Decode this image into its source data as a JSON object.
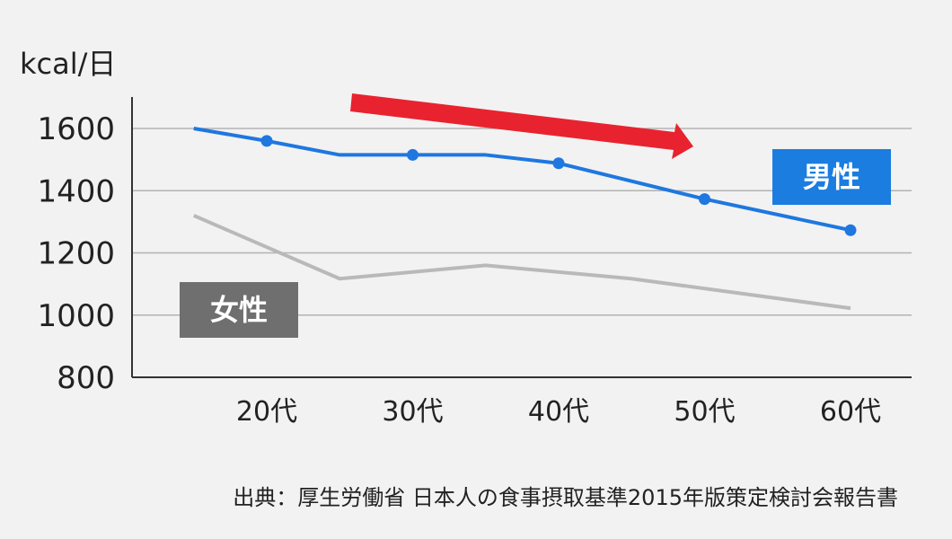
{
  "chart_data": {
    "type": "line",
    "y_unit_label": "kcal/日",
    "categories": [
      "20代",
      "30代",
      "40代",
      "50代",
      "60代"
    ],
    "y_ticks": [
      800,
      1000,
      1200,
      1400,
      1600
    ],
    "ylim": [
      800,
      1600
    ],
    "grid": true,
    "series": [
      {
        "name": "男性",
        "color": "#1f77e0",
        "marker": true,
        "points": [
          {
            "x": 15,
            "y": 1600
          },
          {
            "x": 20,
            "y": 1560
          },
          {
            "x": 25,
            "y": 1515
          },
          {
            "x": 30,
            "y": 1515
          },
          {
            "x": 35,
            "y": 1515
          },
          {
            "x": 40,
            "y": 1488
          },
          {
            "x": 50,
            "y": 1373
          },
          {
            "x": 60,
            "y": 1273
          }
        ],
        "marker_points": [
          {
            "x": 20,
            "y": 1560
          },
          {
            "x": 30,
            "y": 1515
          },
          {
            "x": 40,
            "y": 1488
          },
          {
            "x": 50,
            "y": 1373
          },
          {
            "x": 60,
            "y": 1273
          }
        ]
      },
      {
        "name": "女性",
        "color": "#b9b9b9",
        "marker": false,
        "points": [
          {
            "x": 15,
            "y": 1320
          },
          {
            "x": 25,
            "y": 1117
          },
          {
            "x": 35,
            "y": 1160
          },
          {
            "x": 45,
            "y": 1117
          },
          {
            "x": 60,
            "y": 1022
          }
        ]
      }
    ],
    "legend_labels": [
      {
        "text": "男性",
        "color": "#1a7ddf",
        "position": "right"
      },
      {
        "text": "女性",
        "color": "#6f6f6f",
        "position": "left"
      }
    ],
    "arrow": {
      "color": "#e8232f",
      "direction": "down-right"
    },
    "source": "出典：厚生労働省 日本人の食事摂取基準2015年版策定検討会報告書"
  }
}
